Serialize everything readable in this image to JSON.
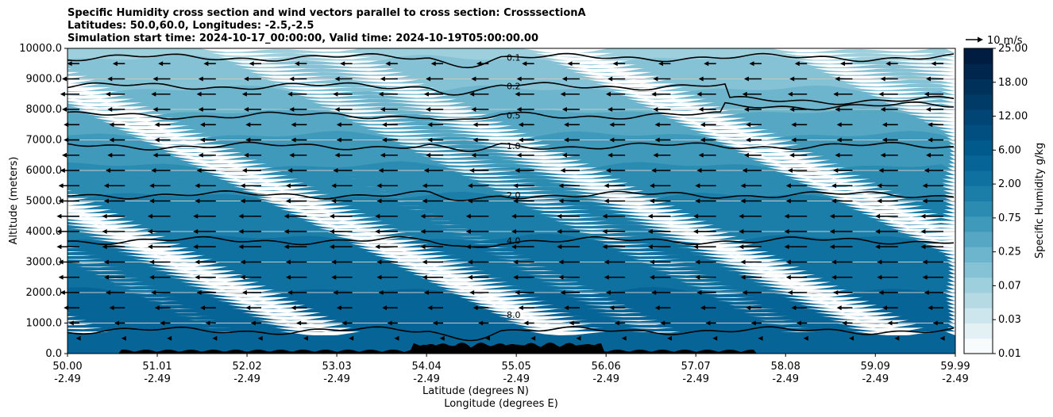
{
  "chart_data": {
    "type": "heatmap",
    "title": [
      "Specific Humidity cross section and wind vectors parallel to cross section: CrosssectionA",
      "Latitudes: 50.0,60.0, Longitudes: -2.5,-2.5",
      "Simulation start time: 2024-10-17_00:00:00, Valid time: 2024-10-19T05:00:00.00"
    ],
    "xlabel": [
      "Latitude (degrees N)",
      "Longitude (degrees E)"
    ],
    "ylabel": "Altitude (meters)",
    "ylim": [
      0,
      10000
    ],
    "xlim": [
      50.0,
      59.99
    ],
    "grid": "horizontal",
    "x_ticks": [
      {
        "lat": "50.00",
        "lon": "-2.49"
      },
      {
        "lat": "51.01",
        "lon": "-2.49"
      },
      {
        "lat": "52.02",
        "lon": "-2.49"
      },
      {
        "lat": "53.03",
        "lon": "-2.49"
      },
      {
        "lat": "54.04",
        "lon": "-2.49"
      },
      {
        "lat": "55.05",
        "lon": "-2.49"
      },
      {
        "lat": "56.06",
        "lon": "-2.49"
      },
      {
        "lat": "57.07",
        "lon": "-2.49"
      },
      {
        "lat": "58.08",
        "lon": "-2.49"
      },
      {
        "lat": "59.09",
        "lon": "-2.49"
      },
      {
        "lat": "59.99",
        "lon": "-2.49"
      }
    ],
    "y_ticks": [
      "0.0",
      "1000.0",
      "2000.0",
      "3000.0",
      "4000.0",
      "5000.0",
      "6000.0",
      "7000.0",
      "8000.0",
      "9000.0",
      "10000.0"
    ],
    "colorbar": {
      "label": "Specific Humidity g/kg",
      "ticks": [
        "0.01",
        "0.03",
        "0.07",
        "0.25",
        "0.75",
        "2.00",
        "6.00",
        "12.00",
        "18.00",
        "25.00"
      ],
      "colors": [
        "#f7fbfc",
        "#e3f0f4",
        "#cde5ec",
        "#b6dae4",
        "#9ecfdd",
        "#86c2d5",
        "#6db5cc",
        "#55a7c3",
        "#3e99ba",
        "#2b8bb1",
        "#1b7ea9",
        "#0e71a0",
        "#066596",
        "#005a8c",
        "#004f80",
        "#004574",
        "#003b67",
        "#00315a",
        "#00264d",
        "#001c40"
      ]
    },
    "quiver_key": {
      "label": "10 m/s",
      "speed": 10
    },
    "contour_levels": [
      {
        "label": "0.1",
        "altitude": 9700
      },
      {
        "label": "0.2",
        "altitude": 8760
      },
      {
        "label": "0.5",
        "altitude": 7800
      },
      {
        "label": "1.0",
        "altitude": 6800
      },
      {
        "label": "2.0",
        "altitude": 5200
      },
      {
        "label": "4.0",
        "altitude": 3700
      },
      {
        "label": "8.0",
        "altitude": 750
      }
    ],
    "humidity_profile": [
      {
        "altitude": 0,
        "value": 8.5
      },
      {
        "altitude": 1000,
        "value": 7.5
      },
      {
        "altitude": 2000,
        "value": 6.0
      },
      {
        "altitude": 3000,
        "value": 4.5
      },
      {
        "altitude": 4000,
        "value": 3.2
      },
      {
        "altitude": 5000,
        "value": 2.2
      },
      {
        "altitude": 6000,
        "value": 1.3
      },
      {
        "altitude": 7000,
        "value": 0.8
      },
      {
        "altitude": 8000,
        "value": 0.4
      },
      {
        "altitude": 9000,
        "value": 0.2
      },
      {
        "altitude": 10000,
        "value": 0.1
      }
    ],
    "wind_profile_mps": [
      {
        "altitude": 500,
        "u": -2
      },
      {
        "altitude": 1000,
        "u": -6
      },
      {
        "altitude": 1500,
        "u": -9
      },
      {
        "altitude": 2000,
        "u": -11
      },
      {
        "altitude": 2500,
        "u": -12
      },
      {
        "altitude": 3000,
        "u": -12
      },
      {
        "altitude": 3500,
        "u": -13
      },
      {
        "altitude": 4000,
        "u": -13
      },
      {
        "altitude": 4500,
        "u": -13
      },
      {
        "altitude": 5000,
        "u": -12
      },
      {
        "altitude": 5500,
        "u": -12
      },
      {
        "altitude": 6000,
        "u": -11
      },
      {
        "altitude": 6500,
        "u": -10
      },
      {
        "altitude": 7000,
        "u": -9
      },
      {
        "altitude": 7500,
        "u": -9
      },
      {
        "altitude": 8000,
        "u": -10
      },
      {
        "altitude": 8500,
        "u": -11
      },
      {
        "altitude": 9000,
        "u": -10
      },
      {
        "altitude": 9500,
        "u": -7
      }
    ]
  }
}
